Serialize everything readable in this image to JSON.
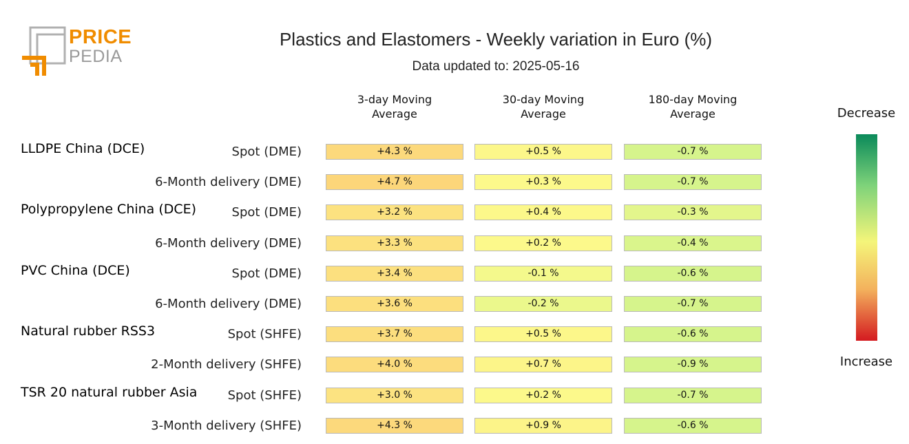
{
  "logo": {
    "price": "PRICE",
    "pedia": "PEDIA",
    "accent": "#f08c00"
  },
  "chart_data": {
    "type": "table",
    "title": "Plastics and Elastomers - Weekly variation in Euro (%)",
    "subtitle": "Data updated to: 2025-05-16",
    "columns": [
      "3-day Moving Average",
      "30-day Moving Average",
      "180-day Moving Average"
    ],
    "groups": [
      {
        "name": "LLDPE China (DCE)",
        "rows": [
          {
            "label": "Spot (DME)",
            "values": [
              4.3,
              0.5,
              -0.7
            ],
            "display": [
              "+4.3 %",
              "+0.5 %",
              "-0.7 %"
            ]
          },
          {
            "label": "6-Month delivery (DME)",
            "values": [
              4.7,
              0.3,
              -0.7
            ],
            "display": [
              "+4.7 %",
              "+0.3 %",
              "-0.7 %"
            ]
          }
        ]
      },
      {
        "name": "Polypropylene China (DCE)",
        "rows": [
          {
            "label": "Spot (DME)",
            "values": [
              3.2,
              0.4,
              -0.3
            ],
            "display": [
              "+3.2 %",
              "+0.4 %",
              "-0.3 %"
            ]
          },
          {
            "label": "6-Month delivery (DME)",
            "values": [
              3.3,
              0.2,
              -0.4
            ],
            "display": [
              "+3.3 %",
              "+0.2 %",
              "-0.4 %"
            ]
          }
        ]
      },
      {
        "name": "PVC China (DCE)",
        "rows": [
          {
            "label": "Spot (DME)",
            "values": [
              3.4,
              -0.1,
              -0.6
            ],
            "display": [
              "+3.4 %",
              "-0.1 %",
              "-0.6 %"
            ]
          },
          {
            "label": "6-Month delivery (DME)",
            "values": [
              3.6,
              -0.2,
              -0.7
            ],
            "display": [
              "+3.6 %",
              "-0.2 %",
              "-0.7 %"
            ]
          }
        ]
      },
      {
        "name": "Natural rubber RSS3",
        "rows": [
          {
            "label": "Spot (SHFE)",
            "values": [
              3.7,
              0.5,
              -0.6
            ],
            "display": [
              "+3.7 %",
              "+0.5 %",
              "-0.6 %"
            ]
          },
          {
            "label": "2-Month delivery (SHFE)",
            "values": [
              4.0,
              0.7,
              -0.9
            ],
            "display": [
              "+4.0 %",
              "+0.7 %",
              "-0.9 %"
            ]
          }
        ]
      },
      {
        "name": "TSR 20 natural rubber Asia",
        "rows": [
          {
            "label": "Spot (SHFE)",
            "values": [
              3.0,
              0.2,
              -0.7
            ],
            "display": [
              "+3.0 %",
              "+0.2 %",
              "-0.7 %"
            ]
          },
          {
            "label": "3-Month delivery (SHFE)",
            "values": [
              4.3,
              0.9,
              -0.6
            ],
            "display": [
              "+4.3 %",
              "+0.9 %",
              "-0.6 %"
            ]
          }
        ]
      }
    ],
    "legend": {
      "top": "Decrease",
      "bottom": "Increase"
    },
    "colors": {
      "decrease": "#0a8a5a",
      "neutral": "#f4f57a",
      "increase": "#d41a20"
    }
  }
}
